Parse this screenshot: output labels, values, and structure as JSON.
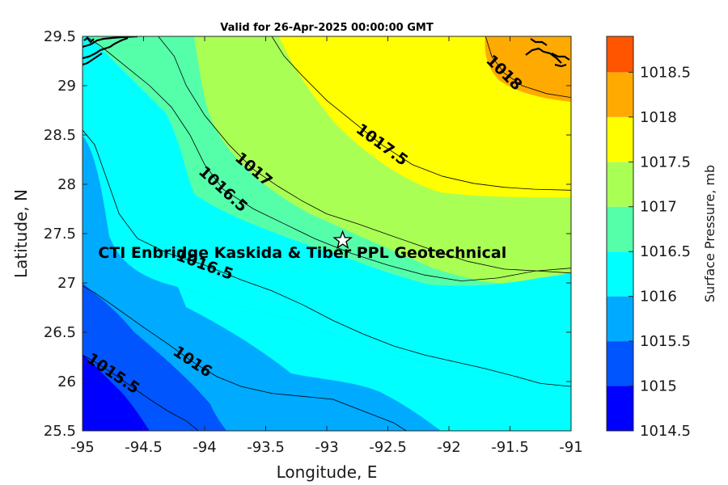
{
  "title": "Valid for 26-Apr-2025 00:00:00 GMT",
  "chart_data": {
    "type": "contour-map",
    "title": "Valid for 26-Apr-2025 00:00:00 GMT",
    "xlabel": "Longitude, E",
    "ylabel": "Latitude, N",
    "xlim": [
      -95,
      -91
    ],
    "ylim": [
      25.5,
      29.5
    ],
    "xticks": [
      "-95",
      "-94.5",
      "-94",
      "-93.5",
      "-93",
      "-92.5",
      "-92",
      "-91.5",
      "-91"
    ],
    "yticks": [
      "25.5",
      "26",
      "26.5",
      "27",
      "27.5",
      "28",
      "28.5",
      "29",
      "29.5"
    ],
    "colorbar": {
      "label": "Surface Pressure, mb",
      "ticks": [
        "1014.5",
        "1015",
        "1015.5",
        "1016",
        "1016.5",
        "1017",
        "1017.5",
        "1018",
        "1018.5"
      ],
      "levels": [
        {
          "from": 1014.5,
          "to": 1015.0,
          "color": "#0000ff"
        },
        {
          "from": 1015.0,
          "to": 1015.5,
          "color": "#0055ff"
        },
        {
          "from": 1015.5,
          "to": 1016.0,
          "color": "#00aaff"
        },
        {
          "from": 1016.0,
          "to": 1016.5,
          "color": "#00ffff"
        },
        {
          "from": 1016.5,
          "to": 1017.0,
          "color": "#55ffaa"
        },
        {
          "from": 1017.0,
          "to": 1017.5,
          "color": "#aaff55"
        },
        {
          "from": 1017.5,
          "to": 1018.0,
          "color": "#ffff00"
        },
        {
          "from": 1018.0,
          "to": 1018.5,
          "color": "#ffaa00"
        },
        {
          "from": 1018.5,
          "to": 1019.0,
          "color": "#ff5500"
        }
      ]
    },
    "contours": [
      {
        "level": 1015.5,
        "label": "1015.5",
        "points": [
          [
            -95,
            26.27
          ],
          [
            -94.9,
            26.2
          ],
          [
            -94.75,
            26.08
          ],
          [
            -94.6,
            25.95
          ],
          [
            -94.45,
            25.82
          ],
          [
            -94.3,
            25.7
          ],
          [
            -94.15,
            25.6
          ],
          [
            -94.05,
            25.5
          ]
        ]
      },
      {
        "level": 1016,
        "label": "1016",
        "points": [
          [
            -95,
            26.97
          ],
          [
            -94.9,
            26.9
          ],
          [
            -94.75,
            26.77
          ],
          [
            -94.5,
            26.55
          ],
          [
            -94.3,
            26.38
          ],
          [
            -94.1,
            26.2
          ],
          [
            -93.9,
            26.05
          ],
          [
            -93.7,
            25.95
          ],
          [
            -93.45,
            25.88
          ],
          [
            -93.2,
            25.85
          ],
          [
            -92.95,
            25.82
          ],
          [
            -92.7,
            25.7
          ],
          [
            -92.45,
            25.58
          ],
          [
            -92.35,
            25.5
          ]
        ]
      },
      {
        "level": 1016.5,
        "label": "1016.5",
        "points": [
          [
            -95,
            28.55
          ],
          [
            -94.9,
            28.4
          ],
          [
            -94.8,
            28.05
          ],
          [
            -94.7,
            27.7
          ],
          [
            -94.55,
            27.45
          ],
          [
            -94.3,
            27.3
          ],
          [
            -94.0,
            27.18
          ],
          [
            -93.7,
            27.03
          ],
          [
            -93.45,
            26.92
          ],
          [
            -93.2,
            26.78
          ],
          [
            -92.95,
            26.62
          ],
          [
            -92.7,
            26.48
          ],
          [
            -92.45,
            26.36
          ],
          [
            -92.2,
            26.27
          ],
          [
            -91.95,
            26.2
          ],
          [
            -91.7,
            26.13
          ],
          [
            -91.45,
            26.05
          ],
          [
            -91.25,
            25.98
          ],
          [
            -91,
            25.95
          ]
        ]
      },
      {
        "level": 1016.5,
        "label": "1016.5",
        "points": [
          [
            -94.97,
            29.5
          ],
          [
            -94.85,
            29.4
          ],
          [
            -94.65,
            29.2
          ],
          [
            -94.45,
            29.0
          ],
          [
            -94.27,
            28.78
          ],
          [
            -94.12,
            28.5
          ],
          [
            -94.0,
            28.2
          ],
          [
            -93.85,
            27.95
          ],
          [
            -93.6,
            27.75
          ],
          [
            -93.35,
            27.6
          ],
          [
            -93.1,
            27.45
          ],
          [
            -92.8,
            27.3
          ],
          [
            -92.5,
            27.18
          ],
          [
            -92.2,
            27.08
          ],
          [
            -91.9,
            27.02
          ],
          [
            -91.6,
            27.05
          ],
          [
            -91.3,
            27.12
          ],
          [
            -91,
            27.15
          ]
        ]
      },
      {
        "level": 1017,
        "label": "1017",
        "points": [
          [
            -94.38,
            29.5
          ],
          [
            -94.25,
            29.3
          ],
          [
            -94.15,
            29.0
          ],
          [
            -94.0,
            28.7
          ],
          [
            -93.8,
            28.4
          ],
          [
            -93.6,
            28.15
          ],
          [
            -93.4,
            27.98
          ],
          [
            -93.2,
            27.83
          ],
          [
            -93.0,
            27.7
          ],
          [
            -92.75,
            27.6
          ],
          [
            -92.45,
            27.47
          ],
          [
            -92.15,
            27.34
          ],
          [
            -91.85,
            27.22
          ],
          [
            -91.55,
            27.14
          ],
          [
            -91.25,
            27.12
          ],
          [
            -91,
            27.1
          ]
        ]
      },
      {
        "level": 1017.5,
        "label": "1017.5",
        "points": [
          [
            -93.45,
            29.5
          ],
          [
            -93.35,
            29.3
          ],
          [
            -93.2,
            29.1
          ],
          [
            -93.0,
            28.85
          ],
          [
            -92.8,
            28.65
          ],
          [
            -92.55,
            28.4
          ],
          [
            -92.3,
            28.2
          ],
          [
            -92.05,
            28.08
          ],
          [
            -91.8,
            28.01
          ],
          [
            -91.55,
            27.97
          ],
          [
            -91.3,
            27.95
          ],
          [
            -91,
            27.94
          ]
        ]
      },
      {
        "level": 1018,
        "label": "1018",
        "points": [
          [
            -91.7,
            29.5
          ],
          [
            -91.65,
            29.3
          ],
          [
            -91.55,
            29.13
          ],
          [
            -91.4,
            29.0
          ],
          [
            -91.2,
            28.92
          ],
          [
            -91,
            28.88
          ]
        ]
      }
    ],
    "annotation": {
      "text": "CTI Enbridge  Kaskida & Tiber PPL Geotechnical",
      "lon": -92.87,
      "lat": 27.43,
      "text_lon": -93.2,
      "text_lat": 27.31
    },
    "marker": {
      "symbol": "star",
      "lon": -92.87,
      "lat": 27.43
    }
  }
}
